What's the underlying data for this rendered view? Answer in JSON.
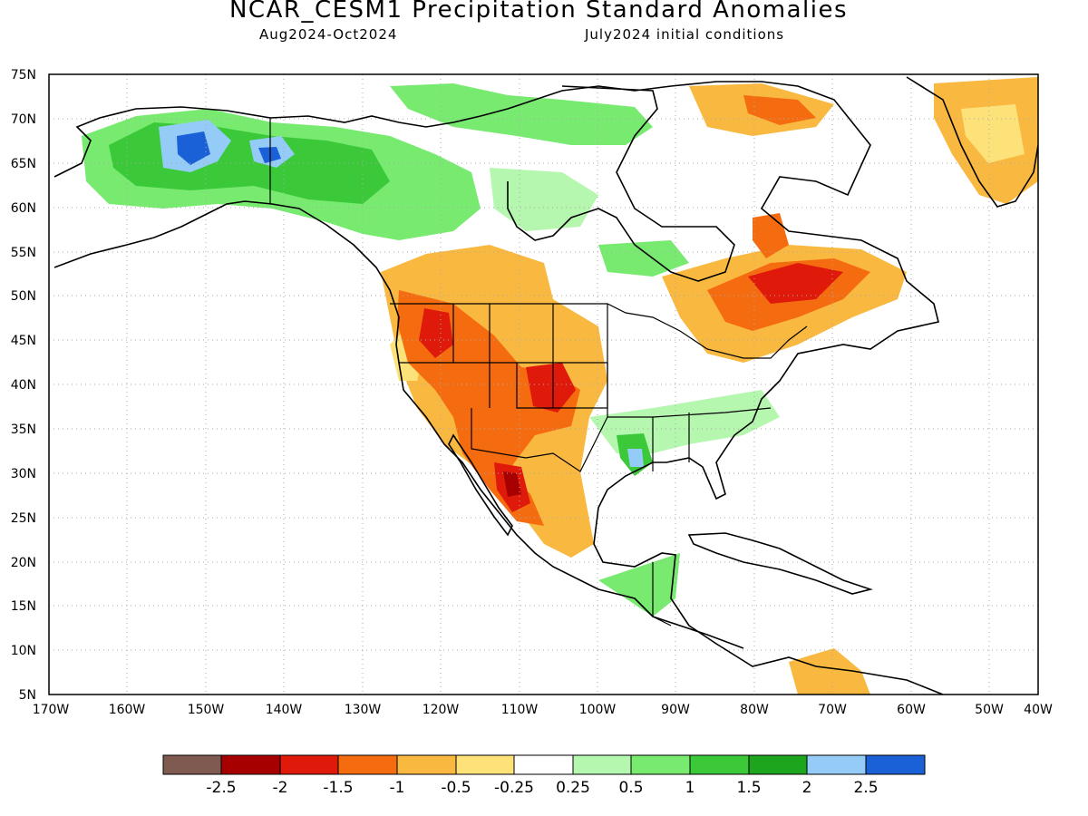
{
  "title": "NCAR_CESM1 Precipitation Standard Anomalies",
  "subtitle_left": "Aug2024-Oct2024",
  "subtitle_right": "July2024 initial conditions",
  "map": {
    "lat_labels": [
      "75N",
      "70N",
      "65N",
      "60N",
      "55N",
      "50N",
      "45N",
      "40N",
      "35N",
      "30N",
      "25N",
      "20N",
      "15N",
      "10N",
      "5N"
    ],
    "lon_labels": [
      "170W",
      "160W",
      "150W",
      "140W",
      "130W",
      "120W",
      "110W",
      "100W",
      "90W",
      "80W",
      "70W",
      "60W",
      "50W",
      "40W"
    ],
    "grid": true,
    "colors": {
      "land_outline": "#000000",
      "gridline": "#aaaaaa"
    }
  },
  "colorbar": {
    "colors": [
      "#7f5a50",
      "#a60000",
      "#e01a0a",
      "#f56b10",
      "#f9b840",
      "#fde27a",
      "#ffffff",
      "#b6f7b0",
      "#78ea70",
      "#3bc93a",
      "#1ea51e",
      "#94ccf7",
      "#1a60d6"
    ],
    "labels": [
      "-2.5",
      "-2",
      "-1.5",
      "-1",
      "-0.5",
      "-0.25",
      "0.25",
      "0.5",
      "1",
      "1.5",
      "2",
      "2.5"
    ]
  }
}
